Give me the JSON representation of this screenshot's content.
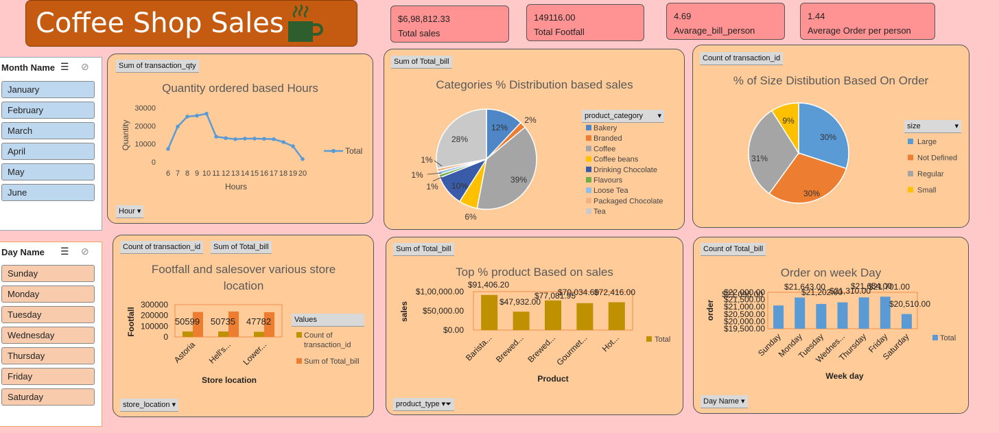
{
  "header": {
    "title": "Coffee Shop Sales"
  },
  "kpis": [
    {
      "value": "$6,98,812.33",
      "label": "Total sales"
    },
    {
      "value": "149116.00",
      "label": "Total Footfall"
    },
    {
      "value": "4.69",
      "label": "Avarage_bill_person"
    },
    {
      "value": "1.44",
      "label": "Average Order  per person"
    }
  ],
  "month_slicer": {
    "title": "Month Name",
    "items": [
      "January",
      "February",
      "March",
      "April",
      "May",
      "June"
    ]
  },
  "day_slicer": {
    "title": "Day Name",
    "items": [
      "Sunday",
      "Monday",
      "Tuesday",
      "Wednesday",
      "Thursday",
      "Friday",
      "Saturday"
    ]
  },
  "colors": {
    "line": "#5b9bd5",
    "bakery": "#4e86c6",
    "branded": "#ed7d31",
    "coffee": "#a5a5a5",
    "coffee_beans": "#ffc000",
    "drinking_chocolate": "#3a5ba8",
    "flavours": "#70ad47",
    "loose_tea": "#8fbfe8",
    "packaged_chocolate": "#f4b183",
    "tea": "#c9c9c9",
    "gold": "#bf9000",
    "orange": "#ed7d31"
  },
  "panels": {
    "hours": {
      "field": "Sum of transaction_qty",
      "filter": "Hour"
    },
    "category": {
      "field": "Sum of Total_bill",
      "legend_title": "product_category"
    },
    "size": {
      "field": "Count of transaction_id",
      "legend_title": "size"
    },
    "store": {
      "field1": "Count of transaction_id",
      "field2": "Sum of Total_bill",
      "filter": "store_location",
      "legend_title": "Values"
    },
    "product": {
      "field": "Sum of Total_bill",
      "filter": "product_type"
    },
    "weekday": {
      "field": "Count of Total_bill",
      "filter": "Day Name"
    }
  },
  "chart_data": [
    {
      "id": "hours",
      "type": "line",
      "title": "Quantity ordered based Hours",
      "xlabel": "Hours",
      "ylabel": "Quantity",
      "x": [
        "6",
        "7",
        "8",
        "9",
        "10",
        "11",
        "12",
        "13",
        "14",
        "15",
        "16",
        "17",
        "18",
        "19",
        "20"
      ],
      "series": [
        {
          "name": "Total",
          "values": [
            7200,
            19600,
            25100,
            25600,
            26700,
            14000,
            13200,
            12600,
            12900,
            12900,
            12800,
            12600,
            11000,
            8700,
            1600
          ]
        }
      ],
      "ylim": [
        0,
        30000
      ],
      "yticks": [
        "30000",
        "20000",
        "10000",
        "0"
      ]
    },
    {
      "id": "category",
      "type": "pie",
      "title": "Categories % Distribution based sales",
      "categories": [
        "Bakery",
        "Branded",
        "Coffee",
        "Coffee beans",
        "Drinking Chocolate",
        "Flavours",
        "Loose Tea",
        "Packaged Chocolate",
        "Tea"
      ],
      "values": [
        12,
        2,
        39,
        6,
        10,
        1,
        1,
        1,
        28
      ],
      "labels": [
        "12%",
        "2%",
        "39%",
        "6%",
        "10%",
        "1%",
        "1%",
        "1%",
        "28%"
      ]
    },
    {
      "id": "size",
      "type": "pie",
      "title": "% of Size Distibution Based On Order",
      "categories": [
        "Large",
        "Not Defined",
        "Regular",
        "Small"
      ],
      "values": [
        30,
        30,
        31,
        9
      ],
      "labels": [
        "30%",
        "30%",
        "31%",
        "9%"
      ]
    },
    {
      "id": "store",
      "type": "bar",
      "title": "Footfall and salesover various store location",
      "xlabel": "Store location",
      "ylabel": "Footfall",
      "categories": [
        "Astoria",
        "Hell's...",
        "Lower..."
      ],
      "series": [
        {
          "name": "Count of transaction_id",
          "values": [
            50599,
            50735,
            47782
          ]
        },
        {
          "name": "Sum of Total_bill",
          "values": [
            232244,
            236511,
            230057
          ]
        }
      ],
      "data_labels": [
        "50599",
        "50735",
        "47782"
      ],
      "ylim": [
        0,
        300000
      ],
      "yticks": [
        "300000",
        "200000",
        "100000",
        "0"
      ]
    },
    {
      "id": "product",
      "type": "bar",
      "title": "Top % product Based on sales",
      "xlabel": "Product",
      "ylabel": "sales",
      "categories": [
        "Barista...",
        "Brewed...",
        "Brewed...",
        "Gourmet...",
        "Hot..."
      ],
      "series": [
        {
          "name": "Total",
          "values": [
            91406.2,
            47932,
            77081.95,
            70034.6,
            72416
          ]
        }
      ],
      "data_labels": [
        "$91,406.20",
        "$47,932.00",
        "$77,081.95",
        "$70,034.60",
        "$72,416.00"
      ],
      "ylim": [
        0,
        100000
      ],
      "yticks": [
        "$1,00,000.00",
        "$50,000.00",
        "$0.00"
      ]
    },
    {
      "id": "weekday",
      "type": "bar",
      "title": "Order on week Day",
      "xlabel": "Week day",
      "ylabel": "order",
      "categories": [
        "Sunday",
        "Monday",
        "Tuesday",
        "Wednesday",
        "Thursday",
        "Friday",
        "Saturday"
      ],
      "tick_labels": [
        "Sunday",
        "Monday",
        "Tuesday",
        "Wednes...",
        "Thursday",
        "Friday",
        "Saturday"
      ],
      "series": [
        {
          "name": "Total",
          "values": [
            21096,
            21643,
            21202,
            21310,
            21654,
            21701,
            20510
          ]
        }
      ],
      "data_labels": [
        "$21,096.00",
        "$21,643.00",
        "$21,202.00",
        "$21,310.00",
        "$21,654.00",
        "$21,701.00",
        "$20,510.00"
      ],
      "ylim": [
        19500,
        22000
      ],
      "yticks": [
        "$22,000.00",
        "$21,500.00",
        "$21,000.00",
        "$20,500.00",
        "$20,000.00",
        "$19,500.00"
      ]
    }
  ]
}
